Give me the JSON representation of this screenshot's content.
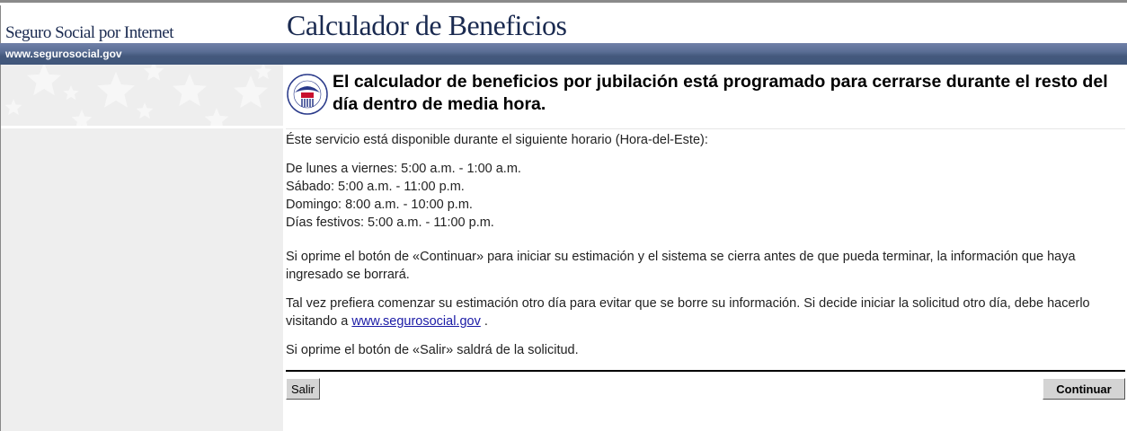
{
  "header": {
    "site_name": "Seguro Social por Internet",
    "title": "Calculador de Beneficios",
    "url_label": "www.segurosocial.gov"
  },
  "alert": {
    "logo": "ssa-seal-icon",
    "message": "El calculador de beneficios por jubilación está programado para cerrarse durante el resto del día dentro de media hora."
  },
  "content": {
    "intro": "Éste servicio está disponible durante el siguiente horario (Hora-del-Este):",
    "hours": [
      "De lunes a viernes: 5:00 a.m. - 1:00 a.m.",
      "Sábado: 5:00 a.m. - 11:00 p.m.",
      "Domingo: 8:00 a.m. - 10:00 p.m.",
      "Días festivos: 5:00 a.m. - 11:00 p.m."
    ],
    "p_continue": "Si oprime el botón de «Continuar» para iniciar su estimación y el sistema se cierra antes de que pueda terminar, la información que haya ingresado se borrará.",
    "p_later": "Tal vez prefiera comenzar su estimación otro día para evitar que se borre su información. Si decide iniciar la solicitud otro día, debe hacerlo visitando a",
    "p_later_link": "www.segurosocial.gov",
    "p_later_end": " .",
    "p_exit": "Si oprime el botón de «Salir» saldrá de la solicitud."
  },
  "buttons": {
    "exit": "Salir",
    "continue": "Continuar"
  }
}
